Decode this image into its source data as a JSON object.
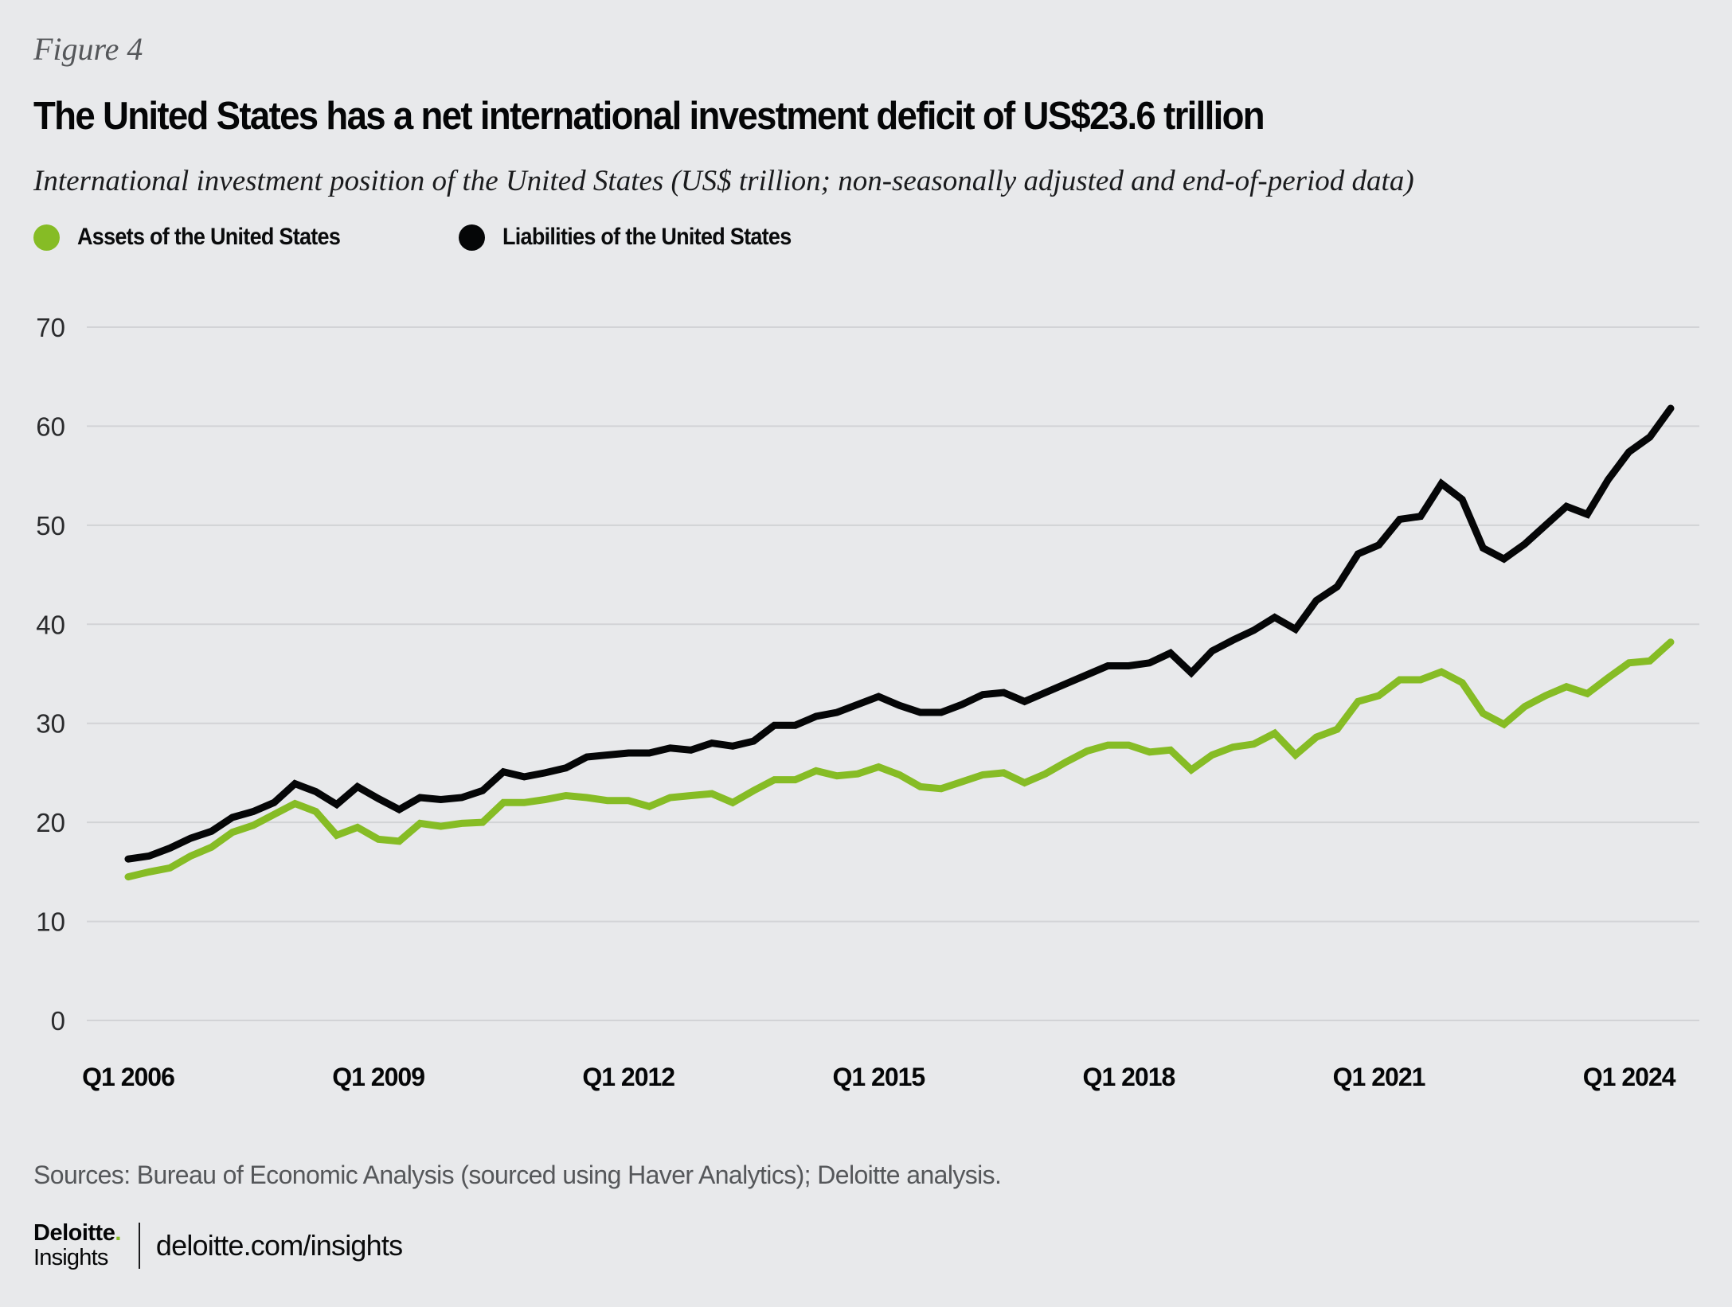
{
  "figure_label": "Figure 4",
  "title": "The United States has a net international investment deficit of US$23.6 trillion",
  "subtitle": "International investment position of the United States (US$ trillion; non-seasonally adjusted and end-of-period data)",
  "colors": {
    "assets": "#86bc25",
    "liabilities": "#050607",
    "gridline": "#d2d3d6",
    "background": "#e8e9eb"
  },
  "legend": [
    {
      "label": "Assets of the United States",
      "series": "assets"
    },
    {
      "label": "Liabilities of the United States",
      "series": "liabilities"
    }
  ],
  "sources": "Sources: Bureau of Economic Analysis (sourced using Haver Analytics); Deloitte analysis.",
  "footer": {
    "logo_brand": "Deloitte",
    "logo_dot": ".",
    "logo_sub": "Insights",
    "link": "deloitte.com/insights"
  },
  "chart_data": {
    "type": "line",
    "title": "The United States has a net international investment deficit of US$23.6 trillion",
    "xlabel": "",
    "ylabel": "US$ trillion",
    "ylim": [
      0,
      70
    ],
    "yticks": [
      0,
      10,
      20,
      30,
      40,
      50,
      60,
      70
    ],
    "grid": true,
    "legend_position": "top-left",
    "x_start": "Q1 2006",
    "x_end": "Q3 2024",
    "x_frequency": "quarterly",
    "xtick_labels": [
      {
        "index": 0,
        "label": "Q1 2006"
      },
      {
        "index": 12,
        "label": "Q1 2009"
      },
      {
        "index": 24,
        "label": "Q1 2012"
      },
      {
        "index": 36,
        "label": "Q1 2015"
      },
      {
        "index": 48,
        "label": "Q1 2018"
      },
      {
        "index": 60,
        "label": "Q1 2021"
      },
      {
        "index": 72,
        "label": "Q1 2024"
      }
    ],
    "series": [
      {
        "name": "Assets of the United States",
        "key": "assets",
        "values": [
          14.5,
          15.0,
          15.4,
          16.6,
          17.5,
          19.0,
          19.7,
          20.8,
          21.9,
          21.1,
          18.7,
          19.5,
          18.3,
          18.1,
          19.9,
          19.6,
          19.9,
          20.0,
          22.0,
          22.0,
          22.3,
          22.7,
          22.5,
          22.2,
          22.2,
          21.6,
          22.5,
          22.7,
          22.9,
          22.0,
          23.2,
          24.3,
          24.3,
          25.2,
          24.7,
          24.9,
          25.6,
          24.8,
          23.6,
          23.4,
          24.1,
          24.8,
          25.0,
          24.0,
          24.9,
          26.1,
          27.2,
          27.8,
          27.8,
          27.1,
          27.3,
          25.3,
          26.8,
          27.6,
          27.9,
          29.0,
          26.8,
          28.6,
          29.4,
          32.2,
          32.8,
          34.4,
          34.4,
          35.2,
          34.1,
          31.0,
          29.9,
          31.7,
          32.8,
          33.7,
          33.0,
          34.6,
          36.1,
          36.3,
          38.2
        ]
      },
      {
        "name": "Liabilities of the United States",
        "key": "liabilities",
        "values": [
          16.3,
          16.6,
          17.4,
          18.4,
          19.1,
          20.5,
          21.1,
          22.0,
          23.9,
          23.1,
          21.8,
          23.6,
          22.4,
          21.3,
          22.5,
          22.3,
          22.5,
          23.2,
          25.1,
          24.6,
          25.0,
          25.5,
          26.6,
          26.8,
          27.0,
          27.0,
          27.5,
          27.3,
          28.0,
          27.7,
          28.2,
          29.8,
          29.8,
          30.7,
          31.1,
          31.9,
          32.7,
          31.8,
          31.1,
          31.1,
          31.9,
          32.9,
          33.1,
          32.2,
          33.1,
          34.0,
          34.9,
          35.8,
          35.8,
          36.1,
          37.1,
          35.1,
          37.3,
          38.4,
          39.4,
          40.7,
          39.5,
          42.4,
          43.8,
          47.1,
          48.0,
          50.6,
          50.9,
          54.2,
          52.6,
          47.7,
          46.6,
          48.1,
          50.0,
          51.9,
          51.1,
          54.6,
          57.4,
          58.9,
          61.8
        ]
      }
    ]
  }
}
